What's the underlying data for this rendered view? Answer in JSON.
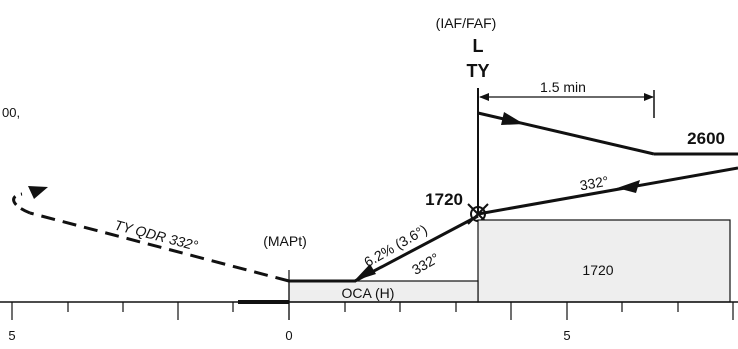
{
  "fix": {
    "role": "(IAF/FAF)",
    "ident_top": "L",
    "ident_bottom": "TY"
  },
  "outbound_time": "1.5 min",
  "initial_altitude": "2600",
  "inbound_track": "332°",
  "faf_altitude": "1720",
  "descent_gradient": "6.2% (3.6°)",
  "final_track": "332°",
  "missed_approach_label": "TY QDR 332°",
  "mapt_label": "(MAPt)",
  "oca_label": "OCA (H)",
  "msa_block_altitude": "1720",
  "partial_text": "00,",
  "distance_scale": {
    "labels": [
      "5",
      "0",
      "5"
    ]
  }
}
